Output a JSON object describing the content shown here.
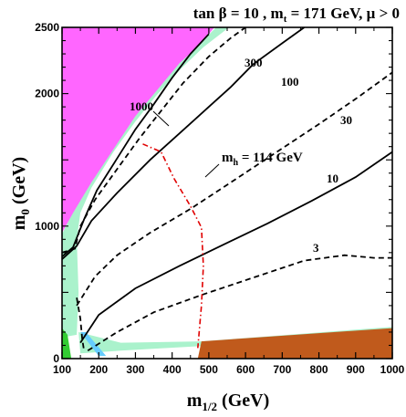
{
  "chart_data": {
    "type": "contour",
    "title_parts": {
      "a": "tan ",
      "beta": "β",
      "b": " = 10 , m",
      "t_sub": "t",
      "c": " = 171 GeV,  ",
      "mu": "μ",
      "d": " > 0"
    },
    "xlabel": {
      "main": "m",
      "sub": "1/2",
      "rest": " (GeV)"
    },
    "ylabel": {
      "main": "m",
      "sub": "0",
      "rest": " (GeV)"
    },
    "xlim": [
      100,
      1000
    ],
    "ylim": [
      0,
      2500
    ],
    "x_ticks": [
      100,
      200,
      300,
      400,
      500,
      600,
      700,
      800,
      900,
      1000
    ],
    "x_tick_labels": [
      "100",
      "200",
      "300",
      "400",
      "500",
      "600",
      "700",
      "800",
      "900",
      "1000"
    ],
    "y_ticks": [
      0,
      1000,
      2000,
      2500
    ],
    "y_tick_labels": [
      "0",
      "1000",
      "2000",
      "2500"
    ],
    "colors": {
      "excluded_upper": "#ff66ff",
      "excluded_lower": "#c05a1c",
      "relic_band": "#aaf2cc",
      "lep_green": "#33cc33",
      "gminus2": "#66ccff",
      "higgs": "#e00000",
      "contour": "#000000"
    },
    "regions": {
      "upper_pink": [
        [
          100,
          2500
        ],
        [
          100,
          950
        ],
        [
          130,
          1100
        ],
        [
          180,
          1330
        ],
        [
          240,
          1580
        ],
        [
          300,
          1830
        ],
        [
          360,
          2030
        ],
        [
          420,
          2230
        ],
        [
          480,
          2380
        ],
        [
          515,
          2500
        ]
      ],
      "lower_brown": [
        [
          480,
          130
        ],
        [
          1000,
          230
        ],
        [
          1000,
          0
        ],
        [
          470,
          0
        ]
      ],
      "relic_strip": [
        [
          100,
          940
        ],
        [
          130,
          1110
        ],
        [
          180,
          1340
        ],
        [
          240,
          1590
        ],
        [
          300,
          1840
        ],
        [
          360,
          2040
        ],
        [
          420,
          2240
        ],
        [
          480,
          2390
        ],
        [
          520,
          2500
        ],
        [
          555,
          2500
        ],
        [
          485,
          2350
        ],
        [
          425,
          2190
        ],
        [
          355,
          1980
        ],
        [
          300,
          1790
        ],
        [
          240,
          1560
        ],
        [
          180,
          1290
        ],
        [
          150,
          1100
        ],
        [
          140,
          900
        ],
        [
          145,
          500
        ],
        [
          140,
          180
        ],
        [
          100,
          160
        ]
      ],
      "relic_lower": [
        [
          145,
          200
        ],
        [
          260,
          120
        ],
        [
          480,
          130
        ],
        [
          1000,
          240
        ],
        [
          1000,
          210
        ],
        [
          480,
          95
        ],
        [
          260,
          60
        ],
        [
          150,
          40
        ]
      ],
      "lep_green": [
        [
          100,
          0
        ],
        [
          100,
          230
        ],
        [
          115,
          180
        ],
        [
          125,
          0
        ]
      ],
      "gminus2": [
        [
          150,
          200
        ],
        [
          200,
          20
        ],
        [
          220,
          20
        ],
        [
          165,
          200
        ]
      ]
    },
    "contours": [
      {
        "label": "1000",
        "style": "solid",
        "points": [
          [
            100,
            770
          ],
          [
            130,
            840
          ],
          [
            160,
            1050
          ],
          [
            195,
            1270
          ],
          [
            250,
            1510
          ],
          [
            300,
            1730
          ],
          [
            350,
            1920
          ],
          [
            400,
            2120
          ],
          [
            450,
            2300
          ],
          [
            500,
            2450
          ]
        ]
      },
      {
        "label": "300",
        "style": "dashed",
        "points": [
          [
            100,
            800
          ],
          [
            135,
            830
          ],
          [
            150,
            1000
          ],
          [
            190,
            1200
          ],
          [
            250,
            1430
          ],
          [
            310,
            1660
          ],
          [
            370,
            1870
          ],
          [
            430,
            2080
          ],
          [
            500,
            2280
          ],
          [
            560,
            2420
          ],
          [
            600,
            2500
          ]
        ]
      },
      {
        "label": "100",
        "style": "solid",
        "points": [
          [
            100,
            750
          ],
          [
            140,
            850
          ],
          [
            180,
            1040
          ],
          [
            250,
            1250
          ],
          [
            340,
            1500
          ],
          [
            420,
            1700
          ],
          [
            500,
            1900
          ],
          [
            560,
            2050
          ],
          [
            620,
            2220
          ],
          [
            700,
            2380
          ],
          [
            760,
            2500
          ]
        ]
      },
      {
        "label": "30",
        "style": "dashed",
        "points": [
          [
            140,
            400
          ],
          [
            190,
            620
          ],
          [
            250,
            780
          ],
          [
            340,
            950
          ],
          [
            450,
            1130
          ],
          [
            560,
            1330
          ],
          [
            680,
            1550
          ],
          [
            800,
            1770
          ],
          [
            900,
            1960
          ],
          [
            1000,
            2160
          ]
        ]
      },
      {
        "label": "10",
        "style": "solid",
        "points": [
          [
            150,
            120
          ],
          [
            200,
            330
          ],
          [
            300,
            530
          ],
          [
            420,
            700
          ],
          [
            540,
            860
          ],
          [
            660,
            1020
          ],
          [
            780,
            1190
          ],
          [
            900,
            1370
          ],
          [
            1000,
            1560
          ]
        ]
      },
      {
        "label": "3",
        "style": "dashed",
        "points": [
          [
            170,
            60
          ],
          [
            250,
            200
          ],
          [
            350,
            350
          ],
          [
            480,
            480
          ],
          [
            620,
            610
          ],
          [
            760,
            740
          ],
          [
            870,
            780
          ],
          [
            950,
            760
          ],
          [
            1000,
            760
          ]
        ]
      },
      {
        "label": "",
        "style": "dashed",
        "points": [
          [
            140,
            460
          ],
          [
            150,
            300
          ],
          [
            155,
            150
          ],
          [
            160,
            60
          ]
        ]
      }
    ],
    "higgs": {
      "label_main": "m",
      "label_sub": "h",
      "label_rest": " = 114 GeV",
      "points": [
        [
          320,
          1620
        ],
        [
          370,
          1560
        ],
        [
          405,
          1360
        ],
        [
          450,
          1150
        ],
        [
          480,
          990
        ],
        [
          485,
          700
        ],
        [
          480,
          400
        ],
        [
          470,
          80
        ]
      ]
    },
    "annotations": {
      "c1000": "1000",
      "c300": "300",
      "c100": "100",
      "c30": "30",
      "c10": "10",
      "c3": "3"
    }
  }
}
